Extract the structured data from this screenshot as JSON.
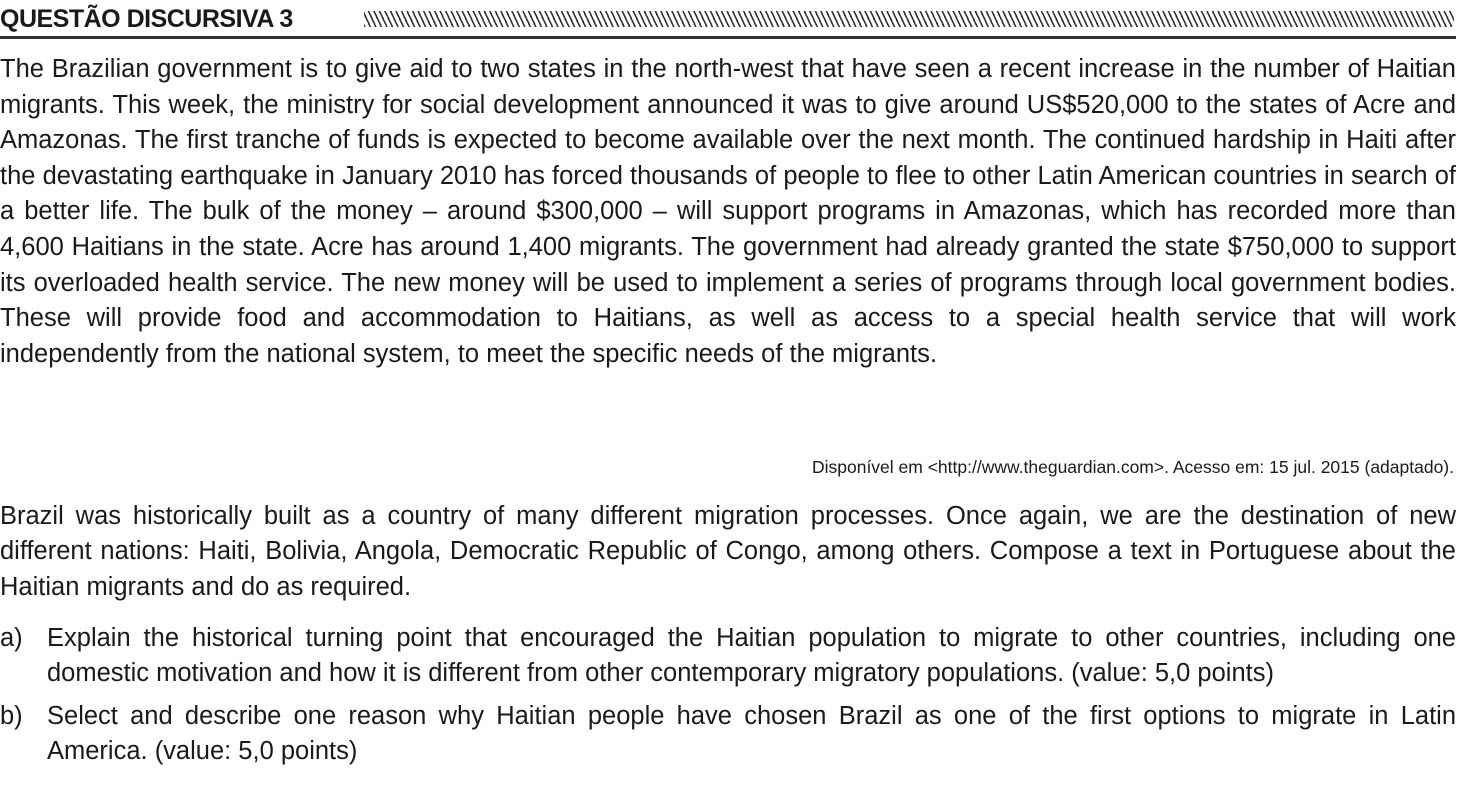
{
  "header": {
    "title": "QUESTÃO DISCURSIVA 3"
  },
  "passage": {
    "text": "The Brazilian government is to give aid to two states in the north-west that have seen a recent increase in the number of Haitian migrants. This week, the ministry for social development announced it was to give around US$520,000 to the states of Acre and Amazonas. The first tranche of funds is expected to become available over the next month. The continued hardship in Haiti after the devastating earthquake in January 2010 has forced thousands of people to flee to other Latin American countries in search of a better life. The bulk of the money – around $300,000 – will support programs in Amazonas, which has recorded more than 4,600 Haitians in the state. Acre has around 1,400 migrants. The government had already granted the state $750,000 to support its overloaded health service. The new money will be used to implement a series of programs through local government bodies. These will provide food and accommodation to Haitians, as well as access to a special health service that will work independently from the national system, to meet the specific needs of the migrants.",
    "source": "Disponível em <http://www.theguardian.com>. Acesso em: 15 jul. 2015 (adaptado)."
  },
  "prompt": {
    "text": "Brazil was historically built as a country of many different migration processes. Once again, we are the destination of new different nations: Haiti, Bolivia, Angola, Democratic Republic of Congo, among others. Compose a text in Portuguese about the Haitian migrants and do as required."
  },
  "tasks": [
    {
      "marker": "a)",
      "text": "Explain the historical turning point that encouraged the Haitian population to migrate to other countries, including one domestic motivation and how it is different from other contemporary migratory populations. (value: 5,0 points)"
    },
    {
      "marker": "b)",
      "text": "Select and describe one reason why Haitian people have chosen Brazil as one of the first options to migrate in Latin America. (value: 5,0 points)"
    }
  ]
}
